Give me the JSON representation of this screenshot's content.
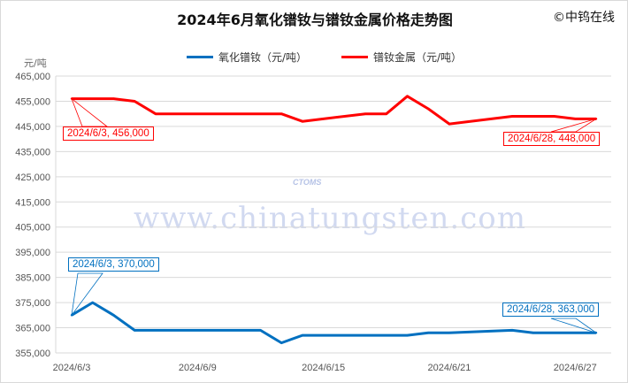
{
  "brand": "©中钨在线",
  "watermark": {
    "text": "www.chinatungsten.com",
    "logo": "CTOMS"
  },
  "chart_data": {
    "type": "line",
    "title": "2024年6月氧化镨钕与镨钕金属价格走势图",
    "ylabel": "元/吨",
    "xlabel": "",
    "ylim": [
      355000,
      465000
    ],
    "ytick_step": 10000,
    "yticks": [
      "355,000",
      "365,000",
      "375,000",
      "385,000",
      "395,000",
      "405,000",
      "415,000",
      "425,000",
      "435,000",
      "445,000",
      "455,000",
      "465,000"
    ],
    "xlim": [
      "2024/6/3",
      "2024/6/28"
    ],
    "xticks": [
      "2024/6/3",
      "2024/6/9",
      "2024/6/15",
      "2024/6/21",
      "2024/6/27"
    ],
    "grid": true,
    "legend_position": "top",
    "series": [
      {
        "name": "氧化镨钕（元/吨）",
        "color": "#0070C0",
        "x": [
          "2024/6/3",
          "2024/6/4",
          "2024/6/5",
          "2024/6/6",
          "2024/6/12",
          "2024/6/13",
          "2024/6/14",
          "2024/6/19",
          "2024/6/20",
          "2024/6/21",
          "2024/6/24",
          "2024/6/25",
          "2024/6/28"
        ],
        "y": [
          370000,
          375000,
          370000,
          364000,
          364000,
          359000,
          362000,
          362000,
          363000,
          363000,
          364000,
          363000,
          363000
        ],
        "annotations": [
          {
            "text": "2024/6/3, 370,000"
          },
          {
            "text": "2024/6/28, 363,000"
          }
        ]
      },
      {
        "name": "镨钕金属（元/吨）",
        "color": "#FF0000",
        "x": [
          "2024/6/3",
          "2024/6/5",
          "2024/6/6",
          "2024/6/7",
          "2024/6/13",
          "2024/6/14",
          "2024/6/17",
          "2024/6/18",
          "2024/6/19",
          "2024/6/20",
          "2024/6/21",
          "2024/6/24",
          "2024/6/26",
          "2024/6/27",
          "2024/6/28"
        ],
        "y": [
          456000,
          456000,
          455000,
          450000,
          450000,
          447000,
          450000,
          450000,
          457000,
          452000,
          446000,
          449000,
          449000,
          448000,
          448000
        ],
        "annotations": [
          {
            "text": "2024/6/3, 456,000"
          },
          {
            "text": "2024/6/28, 448,000"
          }
        ]
      }
    ]
  }
}
